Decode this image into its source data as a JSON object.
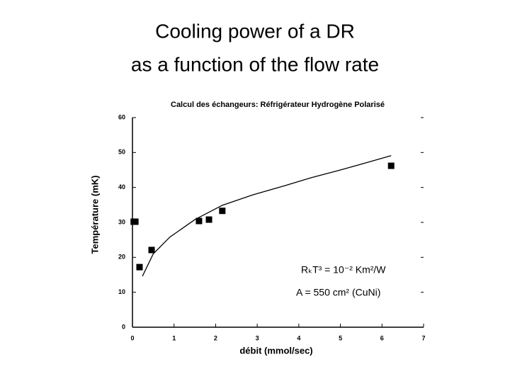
{
  "title": [
    "Cooling power of a DR",
    "as a function of the flow rate"
  ],
  "chart_data": {
    "type": "scatter",
    "title": "Calcul des échangeurs: Réfrigérateur Hydrogène Polarisé",
    "xlabel": "débit (mmol/sec)",
    "ylabel": "Température (mK)",
    "xlim": [
      0,
      7
    ],
    "ylim": [
      0,
      60
    ],
    "xticks": [
      0,
      1,
      2,
      3,
      4,
      5,
      6,
      7
    ],
    "yticks": [
      0,
      10,
      20,
      30,
      40,
      50,
      60
    ],
    "color": "#000000",
    "points": {
      "x": [
        0.03,
        0.07,
        0.17,
        0.46,
        1.6,
        1.84,
        2.16,
        6.22
      ],
      "values": [
        30.2,
        30.2,
        17.2,
        22.1,
        30.4,
        30.8,
        33.3,
        46.2
      ]
    },
    "curve": {
      "x": [
        0.24,
        0.5,
        0.9,
        1.5,
        2.16,
        2.9,
        3.63,
        4.3,
        5.0,
        5.6,
        6.22
      ],
      "values": [
        14.6,
        21.0,
        25.8,
        30.8,
        34.9,
        37.9,
        40.4,
        42.8,
        45.0,
        47.0,
        49.1
      ]
    },
    "annotations": [
      "RₖT³ = 10⁻² Km²/W",
      "A = 550 cm² (CuNi)"
    ]
  }
}
